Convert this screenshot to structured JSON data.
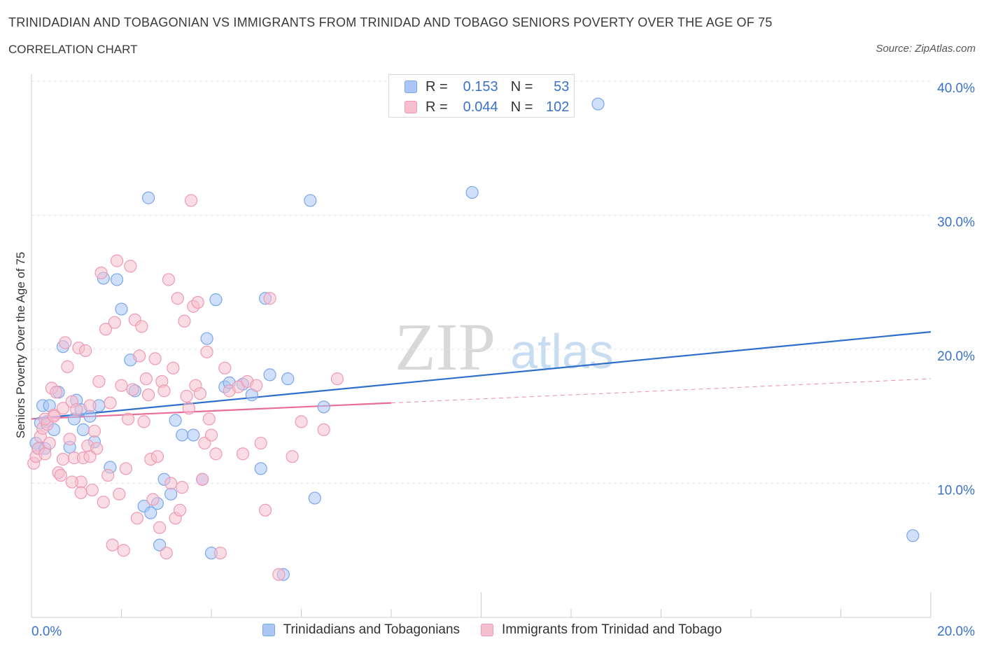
{
  "title": "TRINIDADIAN AND TOBAGONIAN VS IMMIGRANTS FROM TRINIDAD AND TOBAGO SENIORS POVERTY OVER THE AGE OF 75",
  "subtitle": "CORRELATION CHART",
  "source": "Source: ZipAtlas.com",
  "watermark": {
    "zip": "ZIP",
    "atlas": "atlas"
  },
  "stats": [
    {
      "r_label": "R =",
      "r_value": "0.153",
      "n_label": "N =",
      "n_value": "53",
      "color": "#a9c6f5",
      "border": "#7aa6ea"
    },
    {
      "r_label": "R =",
      "r_value": "0.044",
      "n_label": "N =",
      "n_value": "102",
      "color": "#f6bfd0",
      "border": "#ee9ab4"
    }
  ],
  "legend": [
    {
      "label": "Trinidadians and Tobagonians",
      "color": "#a9c6f5",
      "border": "#7aa6ea"
    },
    {
      "label": "Immigrants from Trinidad and Tobago",
      "color": "#f6bfd0",
      "border": "#ee9ab4"
    }
  ],
  "chart_data": {
    "type": "scatter",
    "ylabel": "Seniors Poverty Over the Age of 75",
    "xlim": [
      0,
      20
    ],
    "ylim": [
      0,
      40
    ],
    "x_tick_labels": [
      {
        "value": 0,
        "label": "0.0%"
      },
      {
        "value": 20,
        "label": "20.0%"
      }
    ],
    "y_tick_labels": [
      {
        "value": 10,
        "label": "10.0%"
      },
      {
        "value": 20,
        "label": "20.0%"
      },
      {
        "value": 30,
        "label": "30.0%"
      },
      {
        "value": 40,
        "label": "40.0%"
      }
    ],
    "series": [
      {
        "name": "Trinidadians and Tobagonians",
        "color": "#a9c6f5",
        "stroke": "#7aa6ea",
        "trend_color": "#2f6fcc",
        "trend": {
          "x0": 0,
          "y0": 14.8,
          "x1": 20,
          "y1": 21.3,
          "solid_to": 20
        },
        "points": [
          [
            0.1,
            13.0
          ],
          [
            0.15,
            12.6
          ],
          [
            0.2,
            14.5
          ],
          [
            0.25,
            15.8
          ],
          [
            0.3,
            12.6
          ],
          [
            0.35,
            14.6
          ],
          [
            0.4,
            15.8
          ],
          [
            0.5,
            14.0
          ],
          [
            0.6,
            16.8
          ],
          [
            0.7,
            20.2
          ],
          [
            0.85,
            12.7
          ],
          [
            0.95,
            14.8
          ],
          [
            1.0,
            16.2
          ],
          [
            1.1,
            15.5
          ],
          [
            1.15,
            14.0
          ],
          [
            1.3,
            15.0
          ],
          [
            1.4,
            13.1
          ],
          [
            1.5,
            15.8
          ],
          [
            1.6,
            25.3
          ],
          [
            1.75,
            11.2
          ],
          [
            1.9,
            25.2
          ],
          [
            2.0,
            23.0
          ],
          [
            2.2,
            19.2
          ],
          [
            2.3,
            16.9
          ],
          [
            2.5,
            8.3
          ],
          [
            2.6,
            31.3
          ],
          [
            2.65,
            7.8
          ],
          [
            2.8,
            8.5
          ],
          [
            2.85,
            5.4
          ],
          [
            2.95,
            10.3
          ],
          [
            3.1,
            9.2
          ],
          [
            3.2,
            14.7
          ],
          [
            3.35,
            13.6
          ],
          [
            3.6,
            13.6
          ],
          [
            3.8,
            10.3
          ],
          [
            4.0,
            4.8
          ],
          [
            3.9,
            20.8
          ],
          [
            4.1,
            23.7
          ],
          [
            4.3,
            17.2
          ],
          [
            4.4,
            17.5
          ],
          [
            4.7,
            17.4
          ],
          [
            4.9,
            16.6
          ],
          [
            5.1,
            11.1
          ],
          [
            5.2,
            23.8
          ],
          [
            5.3,
            18.1
          ],
          [
            5.6,
            3.2
          ],
          [
            5.7,
            17.8
          ],
          [
            6.2,
            31.1
          ],
          [
            6.3,
            8.9
          ],
          [
            6.5,
            15.7
          ],
          [
            9.8,
            31.7
          ],
          [
            12.6,
            38.3
          ],
          [
            19.6,
            6.1
          ]
        ]
      },
      {
        "name": "Immigrants from Trinidad and Tobago",
        "color": "#f6bfd0",
        "stroke": "#ee9ab4",
        "trend_color": "#e86e98",
        "trend": {
          "x0": 0,
          "y0": 14.8,
          "x1": 20,
          "y1": 17.8,
          "solid_to": 8.0
        },
        "points": [
          [
            0.05,
            11.5
          ],
          [
            0.1,
            12.0
          ],
          [
            0.15,
            12.6
          ],
          [
            0.2,
            13.5
          ],
          [
            0.25,
            14.1
          ],
          [
            0.3,
            12.2
          ],
          [
            0.35,
            14.4
          ],
          [
            0.4,
            13.0
          ],
          [
            0.45,
            17.1
          ],
          [
            0.5,
            15.1
          ],
          [
            0.55,
            16.8
          ],
          [
            0.6,
            10.8
          ],
          [
            0.65,
            10.6
          ],
          [
            0.7,
            15.6
          ],
          [
            0.75,
            20.5
          ],
          [
            0.8,
            18.7
          ],
          [
            0.85,
            13.3
          ],
          [
            0.9,
            16.1
          ],
          [
            0.95,
            11.9
          ],
          [
            1.0,
            15.5
          ],
          [
            1.05,
            20.1
          ],
          [
            1.1,
            10.1
          ],
          [
            1.15,
            11.9
          ],
          [
            1.2,
            19.9
          ],
          [
            1.25,
            12.8
          ],
          [
            1.3,
            15.8
          ],
          [
            1.35,
            9.5
          ],
          [
            1.4,
            13.9
          ],
          [
            1.45,
            12.6
          ],
          [
            1.5,
            17.6
          ],
          [
            1.55,
            25.7
          ],
          [
            1.6,
            8.6
          ],
          [
            1.65,
            21.5
          ],
          [
            1.7,
            10.6
          ],
          [
            1.75,
            16.0
          ],
          [
            1.8,
            5.4
          ],
          [
            1.85,
            22.0
          ],
          [
            1.9,
            26.6
          ],
          [
            1.95,
            9.2
          ],
          [
            2.0,
            17.3
          ],
          [
            2.05,
            5.0
          ],
          [
            2.1,
            11.1
          ],
          [
            2.15,
            14.8
          ],
          [
            2.2,
            26.2
          ],
          [
            2.25,
            17.0
          ],
          [
            2.3,
            22.2
          ],
          [
            2.35,
            7.4
          ],
          [
            2.4,
            19.5
          ],
          [
            2.45,
            21.7
          ],
          [
            2.5,
            14.6
          ],
          [
            2.55,
            17.8
          ],
          [
            2.6,
            16.6
          ],
          [
            2.65,
            11.8
          ],
          [
            2.7,
            8.8
          ],
          [
            2.75,
            19.3
          ],
          [
            2.8,
            12.0
          ],
          [
            2.85,
            6.7
          ],
          [
            2.9,
            17.6
          ],
          [
            2.95,
            16.9
          ],
          [
            3.0,
            4.8
          ],
          [
            3.05,
            25.2
          ],
          [
            3.1,
            10.0
          ],
          [
            3.15,
            18.6
          ],
          [
            3.2,
            7.4
          ],
          [
            3.25,
            23.8
          ],
          [
            3.3,
            8.0
          ],
          [
            3.35,
            9.7
          ],
          [
            3.4,
            22.1
          ],
          [
            3.45,
            16.5
          ],
          [
            3.5,
            15.6
          ],
          [
            3.55,
            31.1
          ],
          [
            3.6,
            23.2
          ],
          [
            3.65,
            17.3
          ],
          [
            3.7,
            23.5
          ],
          [
            3.75,
            16.7
          ],
          [
            3.8,
            10.3
          ],
          [
            3.85,
            13.0
          ],
          [
            3.9,
            19.8
          ],
          [
            3.95,
            14.8
          ],
          [
            4.0,
            13.6
          ],
          [
            4.1,
            12.2
          ],
          [
            4.2,
            4.8
          ],
          [
            4.3,
            18.6
          ],
          [
            4.4,
            16.9
          ],
          [
            4.6,
            17.2
          ],
          [
            4.7,
            12.2
          ],
          [
            4.8,
            17.6
          ],
          [
            5.0,
            17.3
          ],
          [
            5.1,
            13.0
          ],
          [
            5.2,
            8.0
          ],
          [
            5.3,
            23.8
          ],
          [
            5.5,
            3.2
          ],
          [
            5.8,
            12.0
          ],
          [
            6.0,
            14.6
          ],
          [
            6.5,
            14.0
          ],
          [
            6.8,
            17.8
          ],
          [
            0.3,
            14.8
          ],
          [
            0.5,
            15.0
          ],
          [
            0.7,
            11.8
          ],
          [
            0.9,
            10.1
          ],
          [
            1.1,
            9.3
          ],
          [
            1.3,
            12.0
          ]
        ]
      }
    ]
  }
}
